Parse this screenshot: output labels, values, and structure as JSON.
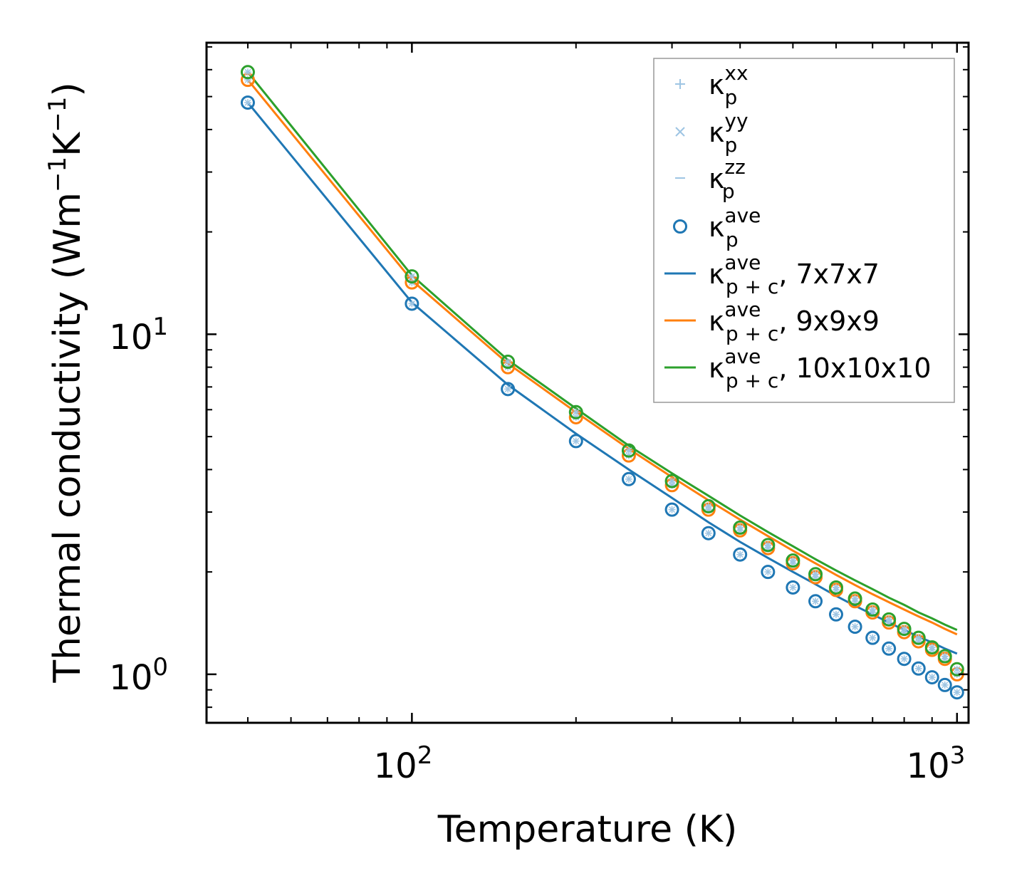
{
  "chart_data": {
    "type": "scatter",
    "xscale": "log",
    "yscale": "log",
    "xlim": [
      42,
      1050
    ],
    "ylim": [
      0.72,
      72
    ],
    "xlabel": "Temperature (K)",
    "ylabel": {
      "prefix": "Thermal conductivity (Wm",
      "exp1": "−1",
      "mid": "K",
      "exp2": "−1",
      "suffix": ")"
    },
    "x_ticks": [
      {
        "base": "10",
        "exp": "2",
        "value": 100
      },
      {
        "base": "10",
        "exp": "3",
        "value": 1000
      }
    ],
    "y_ticks": [
      {
        "base": "10",
        "exp": "0",
        "value": 1
      },
      {
        "base": "10",
        "exp": "1",
        "value": 10
      }
    ],
    "x": [
      50,
      100,
      150,
      200,
      250,
      300,
      350,
      400,
      450,
      500,
      550,
      600,
      650,
      700,
      750,
      800,
      850,
      900,
      950,
      1000
    ],
    "colors": {
      "blue": "#1f77b4",
      "orange": "#ff7f0e",
      "green": "#2ca02c",
      "light_blue": "#9ec5e3"
    },
    "series": [
      {
        "name": "κp ave, 7x7x7",
        "color": "#1f77b4",
        "points": [
          48.0,
          12.3,
          6.9,
          4.85,
          3.75,
          3.05,
          2.6,
          2.25,
          2.0,
          1.8,
          1.64,
          1.5,
          1.38,
          1.28,
          1.19,
          1.11,
          1.04,
          0.98,
          0.93,
          0.885
        ],
        "line": [
          48.0,
          12.4,
          7.1,
          5.1,
          4.0,
          3.3,
          2.8,
          2.45,
          2.2,
          2.0,
          1.84,
          1.7,
          1.59,
          1.5,
          1.42,
          1.35,
          1.29,
          1.24,
          1.19,
          1.15
        ]
      },
      {
        "name": "κp ave, 9x9x9",
        "color": "#ff7f0e",
        "points": [
          56.0,
          14.2,
          8.0,
          5.7,
          4.4,
          3.6,
          3.05,
          2.65,
          2.35,
          2.12,
          1.93,
          1.77,
          1.64,
          1.52,
          1.42,
          1.33,
          1.25,
          1.18,
          1.11,
          1.0
        ],
        "line": [
          56.0,
          14.4,
          8.2,
          5.9,
          4.6,
          3.8,
          3.25,
          2.85,
          2.55,
          2.31,
          2.12,
          1.96,
          1.83,
          1.72,
          1.63,
          1.55,
          1.48,
          1.42,
          1.36,
          1.31
        ]
      },
      {
        "name": "κp ave, 10x10x10",
        "color": "#2ca02c",
        "points": [
          59.0,
          14.8,
          8.3,
          5.9,
          4.55,
          3.7,
          3.12,
          2.7,
          2.4,
          2.16,
          1.97,
          1.8,
          1.67,
          1.55,
          1.45,
          1.36,
          1.28,
          1.2,
          1.13,
          1.035
        ],
        "line": [
          59.0,
          14.9,
          8.4,
          6.05,
          4.7,
          3.9,
          3.35,
          2.93,
          2.62,
          2.38,
          2.18,
          2.02,
          1.89,
          1.78,
          1.68,
          1.6,
          1.52,
          1.46,
          1.4,
          1.35
        ]
      }
    ],
    "legend": {
      "position": "top-right",
      "entries": [
        {
          "marker": "plus",
          "sym": "κ",
          "sub": "p",
          "sup": "xx",
          "suffix": ""
        },
        {
          "marker": "cross",
          "sym": "κ",
          "sub": "p",
          "sup": "yy",
          "suffix": ""
        },
        {
          "marker": "dash",
          "sym": "κ",
          "sub": "p",
          "sup": "zz",
          "suffix": ""
        },
        {
          "marker": "circle",
          "sym": "κ",
          "sub": "p",
          "sup": "ave",
          "suffix": ""
        },
        {
          "marker": "line-blue",
          "sym": "κ",
          "sub": "p + c",
          "sup": "ave",
          "suffix": ", 7x7x7"
        },
        {
          "marker": "line-orange",
          "sym": "κ",
          "sub": "p + c",
          "sup": "ave",
          "suffix": ", 9x9x9"
        },
        {
          "marker": "line-green",
          "sym": "κ",
          "sub": "p + c",
          "sup": "ave",
          "suffix": ", 10x10x10"
        }
      ]
    }
  }
}
